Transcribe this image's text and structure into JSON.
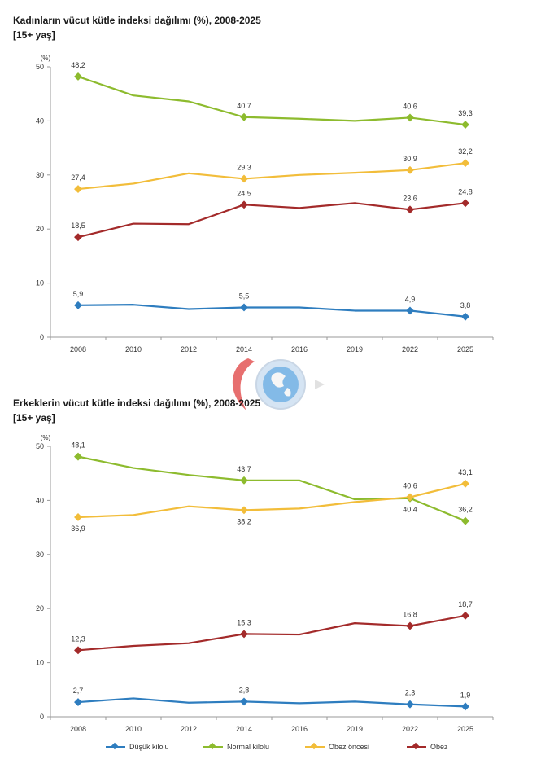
{
  "chart_data": [
    {
      "type": "line",
      "title": "Kadınların vücut kütle indeksi dağılımı (%), 2008-2025",
      "subtitle": "[15+ yaş]",
      "ylabel": "(%)",
      "ylim": [
        0,
        50
      ],
      "yticks": [
        0,
        10,
        20,
        30,
        40,
        50
      ],
      "categories": [
        "2008",
        "2010",
        "2012",
        "2014",
        "2016",
        "2019",
        "2022",
        "2025"
      ],
      "grid": false,
      "series": [
        {
          "name": "Düşük kilolu",
          "color": "#2e7dbf",
          "values": [
            5.9,
            6.0,
            5.2,
            5.5,
            5.5,
            4.9,
            4.9,
            3.8
          ],
          "labels": [
            {
              "i": 0,
              "text": "5,9"
            },
            {
              "i": 3,
              "text": "5,5"
            },
            {
              "i": 6,
              "text": "4,9"
            },
            {
              "i": 7,
              "text": "3,8"
            }
          ]
        },
        {
          "name": "Normal kilolu",
          "color": "#8dbb2e",
          "values": [
            48.2,
            44.7,
            43.6,
            40.7,
            40.4,
            40.0,
            40.6,
            39.3
          ],
          "labels": [
            {
              "i": 0,
              "text": "48,2"
            },
            {
              "i": 3,
              "text": "40,7"
            },
            {
              "i": 6,
              "text": "40,6"
            },
            {
              "i": 7,
              "text": "39,3"
            }
          ]
        },
        {
          "name": "Obez öncesi",
          "color": "#f2bd3a",
          "values": [
            27.4,
            28.4,
            30.3,
            29.3,
            30.0,
            30.4,
            30.9,
            32.2
          ],
          "labels": [
            {
              "i": 0,
              "text": "27,4"
            },
            {
              "i": 3,
              "text": "29,3"
            },
            {
              "i": 6,
              "text": "30,9"
            },
            {
              "i": 7,
              "text": "32,2"
            }
          ]
        },
        {
          "name": "Obez",
          "color": "#a32a2a",
          "values": [
            18.5,
            21.0,
            20.9,
            24.5,
            23.9,
            24.8,
            23.6,
            24.8
          ],
          "labels": [
            {
              "i": 0,
              "text": "18,5"
            },
            {
              "i": 3,
              "text": "24,5"
            },
            {
              "i": 6,
              "text": "23,6"
            },
            {
              "i": 7,
              "text": "24,8"
            }
          ]
        }
      ]
    },
    {
      "type": "line",
      "title": "Erkeklerin vücut kütle indeksi dağılımı (%), 2008-2025",
      "subtitle": "[15+ yaş]",
      "ylabel": "(%)",
      "ylim": [
        0,
        50
      ],
      "yticks": [
        0,
        10,
        20,
        30,
        40,
        50
      ],
      "categories": [
        "2008",
        "2010",
        "2012",
        "2014",
        "2016",
        "2019",
        "2022",
        "2025"
      ],
      "grid": false,
      "series": [
        {
          "name": "Düşük kilolu",
          "color": "#2e7dbf",
          "values": [
            2.7,
            3.4,
            2.6,
            2.8,
            2.5,
            2.8,
            2.3,
            1.9
          ],
          "labels": [
            {
              "i": 0,
              "text": "2,7"
            },
            {
              "i": 3,
              "text": "2,8"
            },
            {
              "i": 6,
              "text": "2,3"
            },
            {
              "i": 7,
              "text": "1,9"
            }
          ]
        },
        {
          "name": "Normal kilolu",
          "color": "#8dbb2e",
          "values": [
            48.1,
            46.0,
            44.7,
            43.7,
            43.7,
            40.2,
            40.4,
            36.2
          ],
          "labels": [
            {
              "i": 0,
              "text": "48,1"
            },
            {
              "i": 3,
              "text": "43,7"
            },
            {
              "i": 6,
              "text": "40,4",
              "below": true
            },
            {
              "i": 7,
              "text": "36,2"
            }
          ]
        },
        {
          "name": "Obez öncesi",
          "color": "#f2bd3a",
          "values": [
            36.9,
            37.3,
            38.9,
            38.2,
            38.5,
            39.7,
            40.6,
            43.1
          ],
          "labels": [
            {
              "i": 0,
              "text": "36,9",
              "below": true
            },
            {
              "i": 3,
              "text": "38,2",
              "below": true
            },
            {
              "i": 6,
              "text": "40,6"
            },
            {
              "i": 7,
              "text": "43,1"
            }
          ]
        },
        {
          "name": "Obez",
          "color": "#a32a2a",
          "values": [
            12.3,
            13.1,
            13.6,
            15.3,
            15.2,
            17.3,
            16.8,
            18.7
          ],
          "labels": [
            {
              "i": 0,
              "text": "12,3"
            },
            {
              "i": 3,
              "text": "15,3"
            },
            {
              "i": 6,
              "text": "16,8"
            },
            {
              "i": 7,
              "text": "18,7"
            }
          ]
        }
      ]
    }
  ],
  "legend": {
    "placement": "bottom",
    "items": [
      {
        "name": "Düşük kilolu",
        "color": "#2e7dbf"
      },
      {
        "name": "Normal kilolu",
        "color": "#8dbb2e"
      },
      {
        "name": "Obez öncesi",
        "color": "#f2bd3a"
      },
      {
        "name": "Obez",
        "color": "#a32a2a"
      }
    ]
  },
  "watermark": {
    "icon": "globe-logo-icon"
  }
}
